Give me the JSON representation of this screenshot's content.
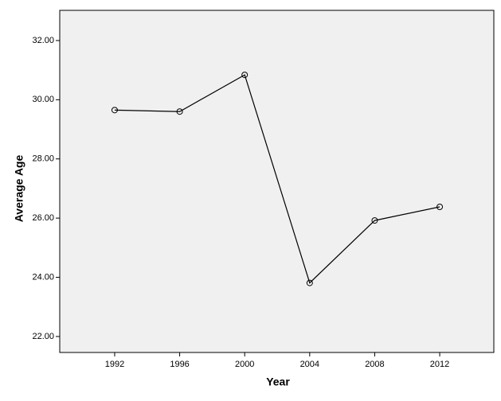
{
  "chart_data": {
    "type": "line",
    "x_label": "Year",
    "y_label": "Average Age",
    "x": [
      1992,
      1996,
      2000,
      2004,
      2008,
      2012
    ],
    "series": [
      {
        "color": "#000000",
        "values": [
          29.65,
          29.6,
          30.84,
          23.81,
          25.92,
          26.38
        ]
      }
    ],
    "xlim": [
      1988.62,
      2015.33
    ],
    "xticks": [
      1992,
      1996,
      2000,
      2004,
      2008,
      2012
    ],
    "ylim": [
      21.46,
      33.02
    ],
    "yticks": [
      {
        "value": 22,
        "label": "22.00"
      },
      {
        "value": 24,
        "label": "24.00"
      },
      {
        "value": 26,
        "label": "26.00"
      },
      {
        "value": 28,
        "label": "28.00"
      },
      {
        "value": 30,
        "label": "30.00"
      },
      {
        "value": 32,
        "label": "32.00"
      }
    ],
    "background": "#f0f0f0"
  }
}
